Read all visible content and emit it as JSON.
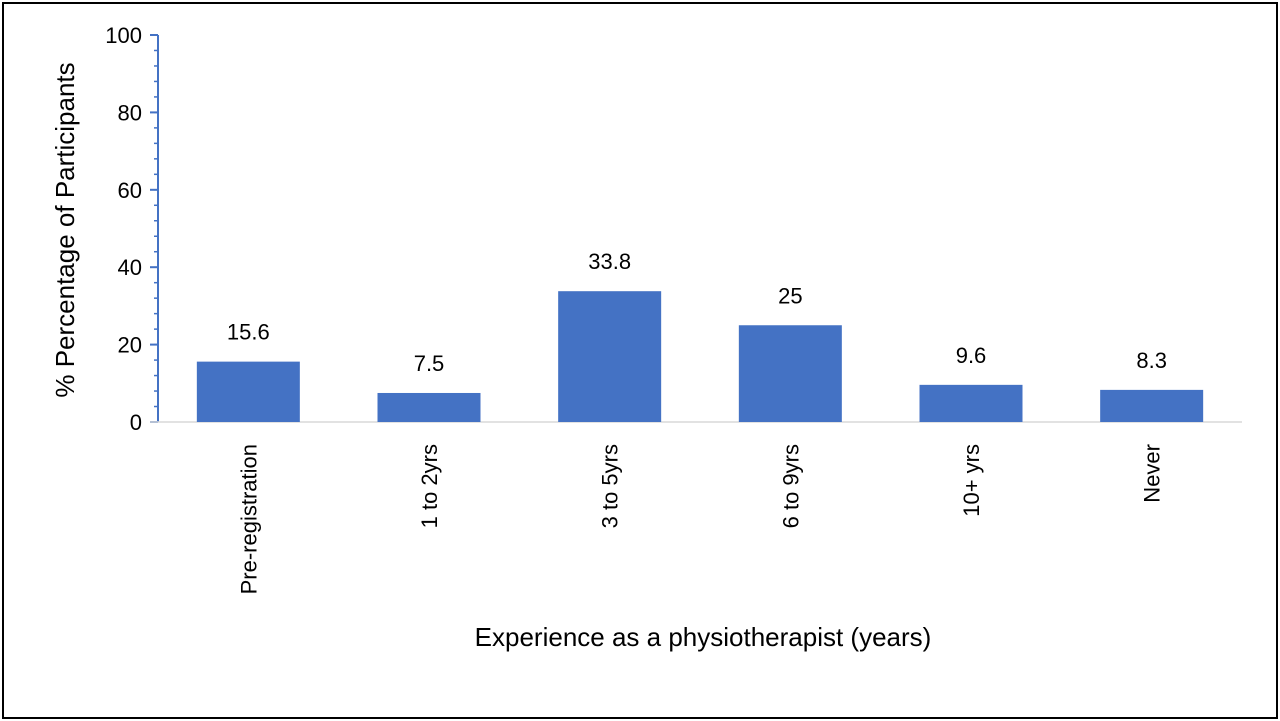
{
  "chart_data": {
    "type": "bar",
    "title": "",
    "xlabel": "Experience as a physiotherapist (years)",
    "ylabel": "% Percentage of Participants",
    "categories": [
      "Pre-registration",
      "1 to 2yrs",
      "3 to 5yrs",
      "6 to 9yrs",
      "10+ yrs",
      "Never"
    ],
    "values": [
      15.6,
      7.5,
      33.8,
      25,
      9.6,
      8.3
    ],
    "value_labels": [
      "15.6",
      "7.5",
      "33.8",
      "25",
      "9.6",
      "8.3"
    ],
    "ylim": [
      0,
      100
    ],
    "yticks": [
      "0",
      "20",
      "40",
      "60",
      "80",
      "100"
    ],
    "grid": false,
    "legend": "none",
    "colors": {
      "bar": "#4472c4",
      "axis": "#4472c4",
      "text": "#000000"
    }
  }
}
